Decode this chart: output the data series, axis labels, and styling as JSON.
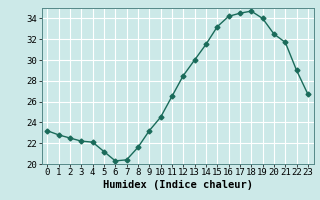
{
  "x": [
    0,
    1,
    2,
    3,
    4,
    5,
    6,
    7,
    8,
    9,
    10,
    11,
    12,
    13,
    14,
    15,
    16,
    17,
    18,
    19,
    20,
    21,
    22,
    23
  ],
  "y": [
    23.2,
    22.8,
    22.5,
    22.2,
    22.1,
    21.2,
    20.3,
    20.4,
    21.6,
    23.2,
    24.5,
    26.5,
    28.5,
    30.0,
    31.5,
    33.2,
    34.2,
    34.5,
    34.7,
    34.0,
    32.5,
    31.7,
    29.0,
    26.7
  ],
  "line_color": "#1a6b5a",
  "marker": "D",
  "marker_size": 2.5,
  "bg_color": "#cce9e8",
  "grid_color": "#ffffff",
  "xlabel": "Humidex (Indice chaleur)",
  "xlim": [
    -0.5,
    23.5
  ],
  "ylim": [
    20,
    35
  ],
  "yticks": [
    20,
    22,
    24,
    26,
    28,
    30,
    32,
    34
  ],
  "xticks": [
    0,
    1,
    2,
    3,
    4,
    5,
    6,
    7,
    8,
    9,
    10,
    11,
    12,
    13,
    14,
    15,
    16,
    17,
    18,
    19,
    20,
    21,
    22,
    23
  ],
  "xtick_labels": [
    "0",
    "1",
    "2",
    "3",
    "4",
    "5",
    "6",
    "7",
    "8",
    "9",
    "10",
    "11",
    "12",
    "13",
    "14",
    "15",
    "16",
    "17",
    "18",
    "19",
    "20",
    "21",
    "22",
    "23"
  ],
  "tick_fontsize": 6.5,
  "xlabel_fontsize": 7.5
}
